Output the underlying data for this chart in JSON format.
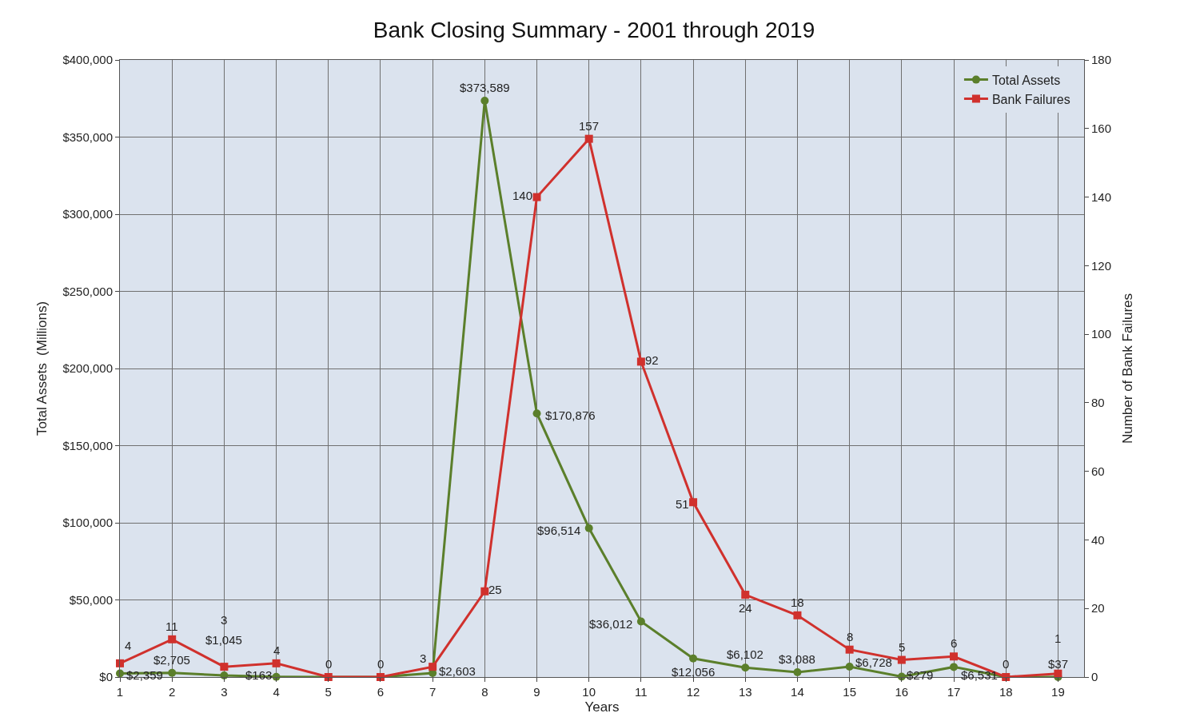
{
  "chart_data": {
    "type": "line",
    "title": "Bank Closing Summary - 2001 through 2019",
    "xlabel": "Years",
    "ylabel": "Total Assets  (Millions)",
    "y2label": "Number of Bank Failures",
    "x": [
      1,
      2,
      3,
      4,
      5,
      6,
      7,
      8,
      9,
      10,
      11,
      12,
      13,
      14,
      15,
      16,
      17,
      18,
      19
    ],
    "xlim": [
      1,
      19.5
    ],
    "xticks": [
      1,
      2,
      3,
      4,
      5,
      6,
      7,
      8,
      9,
      10,
      11,
      12,
      13,
      14,
      15,
      16,
      17,
      18,
      19
    ],
    "ylim": [
      0,
      400000
    ],
    "yticks": [
      {
        "value": 0,
        "label": "$0"
      },
      {
        "value": 50000,
        "label": "$50,000"
      },
      {
        "value": 100000,
        "label": "$100,000"
      },
      {
        "value": 150000,
        "label": "$150,000"
      },
      {
        "value": 200000,
        "label": "$200,000"
      },
      {
        "value": 250000,
        "label": "$250,000"
      },
      {
        "value": 300000,
        "label": "$300,000"
      },
      {
        "value": 350000,
        "label": "$350,000"
      },
      {
        "value": 400000,
        "label": "$400,000"
      }
    ],
    "y2lim": [
      0,
      180
    ],
    "y2ticks": [
      0,
      20,
      40,
      60,
      80,
      100,
      120,
      140,
      160,
      180
    ],
    "grid": true,
    "legend": "top right",
    "line_style": "solid",
    "series": [
      {
        "name": "Total Assets",
        "color": "#5b7f2b",
        "marker": "circle",
        "values": [
          2359,
          2705,
          1045,
          163,
          0,
          0,
          2603,
          373589,
          170876,
          96514,
          36012,
          12056,
          6102,
          3088,
          6728,
          279,
          6531,
          0,
          37
        ],
        "value_labels": [
          "$2,359",
          "$2,705",
          "$1,045",
          "$163",
          null,
          null,
          "$2,603",
          "$373,589",
          "$170,876",
          "$96,514",
          "$36,012",
          "$12,056",
          "$6,102",
          "$3,088",
          "$6,728",
          "$279",
          "$6,531",
          null,
          "$37"
        ]
      },
      {
        "name": "Bank Failures",
        "color": "#d0312d",
        "marker": "square",
        "axis": "y2",
        "values": [
          4,
          11,
          3,
          4,
          0,
          0,
          3,
          25,
          140,
          157,
          92,
          51,
          24,
          18,
          8,
          5,
          6,
          0,
          1
        ],
        "value_labels": [
          "4",
          "11",
          "3",
          "4",
          "0",
          "0",
          "3",
          "25",
          "140",
          "157",
          "92",
          "51",
          "24",
          "18",
          "8",
          "5",
          "6",
          "0",
          "1"
        ]
      }
    ]
  }
}
